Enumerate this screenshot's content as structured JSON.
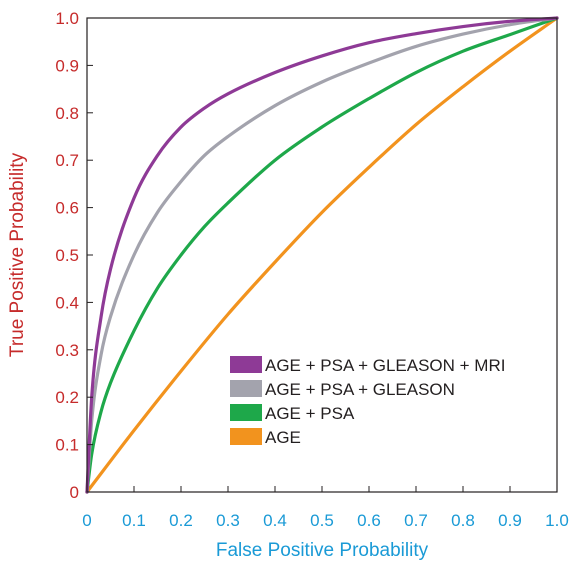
{
  "chart_data": {
    "type": "line",
    "title": "",
    "xlabel": "False Positive Probability",
    "ylabel": "True Positive Probability",
    "xlim": [
      0,
      1
    ],
    "ylim": [
      0,
      1
    ],
    "x_ticks": [
      "0",
      "0.1",
      "0.2",
      "0.3",
      "0.4",
      "0.5",
      "0.6",
      "0.7",
      "0.8",
      "0.9",
      "1.0"
    ],
    "y_ticks": [
      "0",
      "0.1",
      "0.2",
      "0.3",
      "0.4",
      "0.5",
      "0.6",
      "0.7",
      "0.8",
      "0.9",
      "1.0"
    ],
    "x_tick_color": "#1a9ad6",
    "y_tick_color": "#c62b2b",
    "xlabel_color": "#1a9ad6",
    "ylabel_color": "#c62b2b",
    "grid": false,
    "legend_position": "bottom-right",
    "series": [
      {
        "name": "AGE + PSA + GLEASON + MRI",
        "color": "#8e3a96",
        "x": [
          0,
          0.01,
          0.03,
          0.05,
          0.1,
          0.15,
          0.2,
          0.25,
          0.3,
          0.4,
          0.5,
          0.6,
          0.7,
          0.8,
          0.9,
          1.0
        ],
        "y": [
          0,
          0.2,
          0.37,
          0.47,
          0.62,
          0.71,
          0.77,
          0.81,
          0.84,
          0.885,
          0.92,
          0.948,
          0.967,
          0.982,
          0.993,
          1.0
        ]
      },
      {
        "name": "AGE + PSA + GLEASON",
        "color": "#a3a3ad",
        "x": [
          0,
          0.01,
          0.03,
          0.05,
          0.1,
          0.15,
          0.2,
          0.25,
          0.3,
          0.4,
          0.5,
          0.6,
          0.7,
          0.8,
          0.9,
          1.0
        ],
        "y": [
          0,
          0.15,
          0.29,
          0.37,
          0.5,
          0.59,
          0.655,
          0.71,
          0.75,
          0.815,
          0.865,
          0.905,
          0.94,
          0.966,
          0.986,
          1.0
        ]
      },
      {
        "name": "AGE + PSA",
        "color": "#1ea84a",
        "x": [
          0,
          0.01,
          0.03,
          0.05,
          0.1,
          0.15,
          0.2,
          0.25,
          0.3,
          0.4,
          0.5,
          0.6,
          0.7,
          0.8,
          0.9,
          1.0
        ],
        "y": [
          0,
          0.08,
          0.17,
          0.23,
          0.34,
          0.43,
          0.5,
          0.56,
          0.61,
          0.7,
          0.77,
          0.83,
          0.885,
          0.93,
          0.965,
          1.0
        ]
      },
      {
        "name": "AGE",
        "color": "#f2931e",
        "x": [
          0,
          0.1,
          0.2,
          0.3,
          0.4,
          0.5,
          0.6,
          0.7,
          0.8,
          0.9,
          1.0
        ],
        "y": [
          0,
          0.13,
          0.255,
          0.375,
          0.485,
          0.59,
          0.685,
          0.775,
          0.855,
          0.93,
          1.0
        ]
      }
    ]
  }
}
